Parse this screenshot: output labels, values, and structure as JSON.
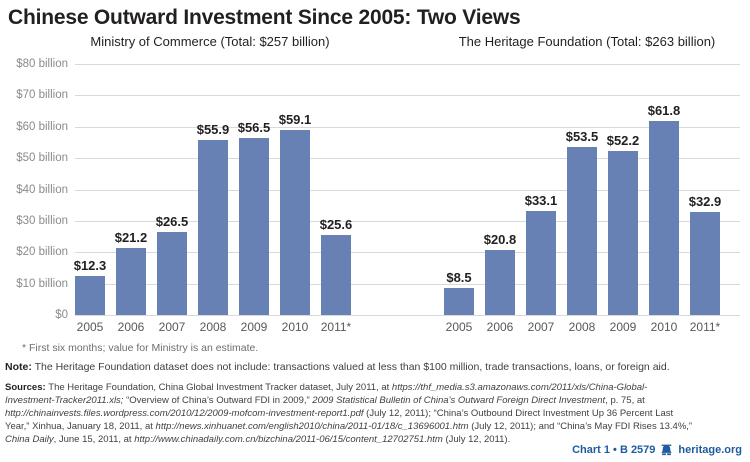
{
  "title": "Chinese Outward Investment Since 2005: Two Views",
  "colors": {
    "bar_blue": "#6781b4",
    "gridline_gray": "#d8d9da",
    "heritage_blue": "#1d5c9f",
    "title_dark": "#231f20",
    "axis_gray": "#8a8b8e"
  },
  "chart_data": [
    {
      "type": "bar",
      "title": "Ministry of Commerce (Total: $257 billion)",
      "categories": [
        "2005",
        "2006",
        "2007",
        "2008",
        "2009",
        "2010",
        "2011*"
      ],
      "values": [
        12.3,
        21.2,
        26.5,
        55.9,
        56.5,
        59.1,
        25.6
      ],
      "value_labels": [
        "$12.3",
        "$21.2",
        "$26.5",
        "$55.9",
        "$56.5",
        "$59.1",
        "$25.6"
      ],
      "ylabel": "US$ billions",
      "ylim": [
        0,
        80
      ],
      "grid": true,
      "legend": "none"
    },
    {
      "type": "bar",
      "title": "The Heritage Foundation (Total: $263 billion)",
      "categories": [
        "2005",
        "2006",
        "2007",
        "2008",
        "2009",
        "2010",
        "2011*"
      ],
      "values": [
        8.5,
        20.8,
        33.1,
        53.5,
        52.2,
        61.8,
        32.9
      ],
      "value_labels": [
        "$8.5",
        "$20.8",
        "$33.1",
        "$53.5",
        "$52.2",
        "$61.8",
        "$32.9"
      ],
      "ylabel": "US$ billions",
      "ylim": [
        0,
        80
      ],
      "grid": true,
      "legend": "none"
    }
  ],
  "yaxis": {
    "ticks": [
      "$80 billion",
      "$70 billion",
      "$60 billion",
      "$50 billion",
      "$40 billion",
      "$30 billion",
      "$20 billion",
      "$10 billion",
      "$0"
    ],
    "max": 80
  },
  "footnote": "* First six months; value for Ministry is an estimate.",
  "note": {
    "label": "Note:",
    "text": " The Heritage Foundation dataset does not include: transactions valued at less than $100 million, trade transactions, loans, or foreign aid."
  },
  "sources": {
    "lines": [
      [
        {
          "t": "Sources: ",
          "b": 1
        },
        {
          "t": "The Heritage Foundation, China Global Investment Tracker dataset, July 2011, at "
        },
        {
          "t": "https://thf_media.s3.amazonaws.com/2011/xls/China-Global-",
          "i": 1
        }
      ],
      [
        {
          "t": "Investment-Tracker2011.xls;",
          "i": 1
        },
        {
          "t": " “Overview of China’s Outward FDI in 2009,” "
        },
        {
          "t": "2009 Statistical Bulletin of China’s Outward Foreign Direct Investment",
          "i": 1
        },
        {
          "t": ", p. 75, at"
        }
      ],
      [
        {
          "t": "http://chinainvests.files.wordpress.com/2010/12/2009-mofcom-investment-report1.pdf",
          "i": 1
        },
        {
          "t": " (July 12, 2011); “China’s Outbound Direct Investment Up 36 Percent Last"
        }
      ],
      [
        {
          "t": "Year,” Xinhua, January 18, 2011, at "
        },
        {
          "t": "http://news.xinhuanet.com/english2010/china/2011-01/18/c_13696001.htm",
          "i": 1
        },
        {
          "t": " (July 12, 2011); and “China’s May FDI Rises 13.4%,”"
        }
      ],
      [
        {
          "t": "China Daily",
          "i": 1
        },
        {
          "t": ", June 15, 2011, at "
        },
        {
          "t": "http://www.chinadaily.com.cn/bizchina/2011-06/15/content_12702751.htm",
          "i": 1
        },
        {
          "t": " (July 12, 2011)."
        }
      ]
    ]
  },
  "footer": {
    "chart_ref": "Chart 1 • B 2579",
    "site": "heritage.org"
  }
}
